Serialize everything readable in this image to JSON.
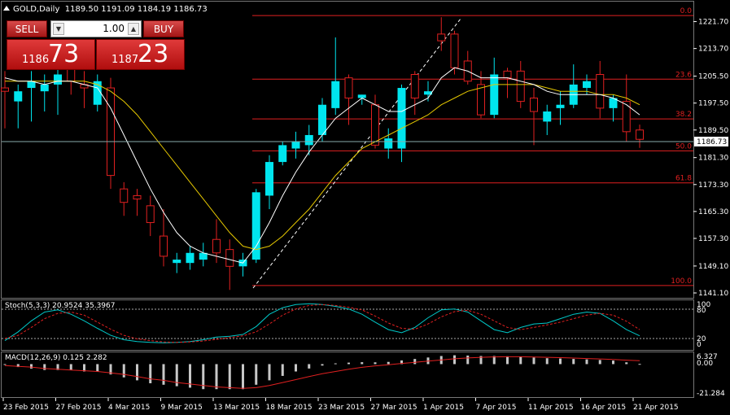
{
  "header": {
    "symbol": "GOLD,Daily",
    "ohlc": "1189.50 1191.09 1184.19 1186.73"
  },
  "trade_panel": {
    "sell_label": "SELL",
    "buy_label": "BUY",
    "lot_value": "1.00",
    "sell_small": "1186",
    "sell_big": "73",
    "buy_small": "1187",
    "buy_big": "23"
  },
  "colors": {
    "bull": "#00e5ee",
    "bear": "#e02020",
    "fib": "#e02020",
    "ma_fast": "#ffffff",
    "ma_slow": "#e6c800",
    "stoch_main": "#00c8c8",
    "stoch_signal": "#e02020",
    "macd_hist": "#c8c8c8",
    "macd_signal": "#e02020"
  },
  "indicators": {
    "stoch_label": "Stoch(5,3,3) 20.9524 35.3967",
    "macd_label": "MACD(12,26,9) 0.125 2.282",
    "stoch_levels": [
      "100",
      "80",
      "20",
      "0"
    ],
    "macd_levels": [
      "6.327",
      "0.00",
      "-21.284"
    ]
  },
  "price_axis": {
    "ticks": [
      "1221.70",
      "1213.70",
      "1205.50",
      "1197.50",
      "1189.50",
      "1181.30",
      "1173.30",
      "1165.30",
      "1157.30",
      "1149.10",
      "1141.10"
    ],
    "current": "1186.73"
  },
  "fib_levels": [
    "0.0",
    "23.6",
    "38.2",
    "50.0",
    "61.8",
    "100.0"
  ],
  "time_axis": [
    "23 Feb 2015",
    "27 Feb 2015",
    "4 Mar 2015",
    "9 Mar 2015",
    "13 Mar 2015",
    "18 Mar 2015",
    "23 Mar 2015",
    "27 Mar 2015",
    "1 Apr 2015",
    "7 Apr 2015",
    "11 Apr 2015",
    "16 Apr 2015",
    "21 Apr 2015"
  ],
  "chart_data": {
    "type": "candlestick",
    "title": "GOLD,Daily",
    "ylim": [
      1141.1,
      1225.7
    ],
    "candles": [
      {
        "o": 1202,
        "h": 1207,
        "l": 1190,
        "c": 1201
      },
      {
        "o": 1198,
        "h": 1203,
        "l": 1190,
        "c": 1201
      },
      {
        "o": 1202,
        "h": 1207,
        "l": 1192,
        "c": 1204
      },
      {
        "o": 1201,
        "h": 1206,
        "l": 1195,
        "c": 1203
      },
      {
        "o": 1203,
        "h": 1208,
        "l": 1194,
        "c": 1206
      },
      {
        "o": 1209,
        "h": 1213,
        "l": 1200,
        "c": 1204
      },
      {
        "o": 1203,
        "h": 1207,
        "l": 1196,
        "c": 1202
      },
      {
        "o": 1197,
        "h": 1206,
        "l": 1195,
        "c": 1204
      },
      {
        "o": 1202,
        "h": 1205,
        "l": 1172,
        "c": 1176
      },
      {
        "o": 1172,
        "h": 1174,
        "l": 1164,
        "c": 1168
      },
      {
        "o": 1170,
        "h": 1172,
        "l": 1164,
        "c": 1169
      },
      {
        "o": 1167,
        "h": 1170,
        "l": 1158,
        "c": 1162
      },
      {
        "o": 1158,
        "h": 1166,
        "l": 1149,
        "c": 1152
      },
      {
        "o": 1150,
        "h": 1153,
        "l": 1147,
        "c": 1151
      },
      {
        "o": 1150,
        "h": 1155,
        "l": 1148,
        "c": 1153
      },
      {
        "o": 1151,
        "h": 1156,
        "l": 1149,
        "c": 1153
      },
      {
        "o": 1157,
        "h": 1163,
        "l": 1150,
        "c": 1153
      },
      {
        "o": 1154,
        "h": 1157,
        "l": 1142,
        "c": 1149
      },
      {
        "o": 1149,
        "h": 1153,
        "l": 1146,
        "c": 1151
      },
      {
        "o": 1151,
        "h": 1172,
        "l": 1150,
        "c": 1171
      },
      {
        "o": 1170,
        "h": 1182,
        "l": 1166,
        "c": 1180
      },
      {
        "o": 1180,
        "h": 1186,
        "l": 1179,
        "c": 1185
      },
      {
        "o": 1184,
        "h": 1189,
        "l": 1181,
        "c": 1186
      },
      {
        "o": 1185,
        "h": 1191,
        "l": 1182,
        "c": 1188
      },
      {
        "o": 1188,
        "h": 1199,
        "l": 1186,
        "c": 1197
      },
      {
        "o": 1196,
        "h": 1217,
        "l": 1194,
        "c": 1204
      },
      {
        "o": 1205,
        "h": 1206,
        "l": 1191,
        "c": 1199
      },
      {
        "o": 1199,
        "h": 1200,
        "l": 1197,
        "c": 1200
      },
      {
        "o": 1197,
        "h": 1200,
        "l": 1184,
        "c": 1185
      },
      {
        "o": 1184,
        "h": 1190,
        "l": 1181,
        "c": 1187
      },
      {
        "o": 1184,
        "h": 1203,
        "l": 1180,
        "c": 1202
      },
      {
        "o": 1206,
        "h": 1207,
        "l": 1194,
        "c": 1199
      },
      {
        "o": 1200,
        "h": 1204,
        "l": 1198,
        "c": 1201
      },
      {
        "o": 1218,
        "h": 1223,
        "l": 1213,
        "c": 1216
      },
      {
        "o": 1218,
        "h": 1219,
        "l": 1206,
        "c": 1208
      },
      {
        "o": 1210,
        "h": 1213,
        "l": 1203,
        "c": 1204
      },
      {
        "o": 1203,
        "h": 1207,
        "l": 1193,
        "c": 1194
      },
      {
        "o": 1194,
        "h": 1211,
        "l": 1193,
        "c": 1206
      },
      {
        "o": 1207,
        "h": 1208,
        "l": 1199,
        "c": 1205
      },
      {
        "o": 1207,
        "h": 1210,
        "l": 1196,
        "c": 1198
      },
      {
        "o": 1199,
        "h": 1202,
        "l": 1185,
        "c": 1195
      },
      {
        "o": 1192,
        "h": 1197,
        "l": 1188,
        "c": 1195
      },
      {
        "o": 1196,
        "h": 1201,
        "l": 1191,
        "c": 1197
      },
      {
        "o": 1197,
        "h": 1209,
        "l": 1196,
        "c": 1203
      },
      {
        "o": 1202,
        "h": 1206,
        "l": 1200,
        "c": 1204
      },
      {
        "o": 1206,
        "h": 1210,
        "l": 1193,
        "c": 1196
      },
      {
        "o": 1196,
        "h": 1200,
        "l": 1192,
        "c": 1199
      },
      {
        "o": 1198,
        "h": 1206,
        "l": 1186,
        "c": 1189
      },
      {
        "o": 1189.5,
        "h": 1191.09,
        "l": 1184.19,
        "c": 1186.73
      }
    ],
    "ma_fast": [
      1205,
      1204,
      1204,
      1203,
      1204,
      1204,
      1203,
      1202,
      1196,
      1188,
      1180,
      1172,
      1165,
      1159,
      1155,
      1153,
      1152,
      1151,
      1150,
      1155,
      1162,
      1170,
      1177,
      1183,
      1188,
      1193,
      1196,
      1199,
      1197,
      1195,
      1195,
      1197,
      1199,
      1205,
      1208,
      1207,
      1205,
      1205,
      1205,
      1204,
      1203,
      1201,
      1200,
      1200,
      1200,
      1200,
      1199,
      1197,
      1194
    ],
    "ma_slow": [
      1204,
      1204,
      1204,
      1204,
      1204,
      1204,
      1204,
      1203,
      1201,
      1198,
      1194,
      1189,
      1184,
      1179,
      1174,
      1169,
      1164,
      1159,
      1155,
      1154,
      1155,
      1158,
      1162,
      1166,
      1171,
      1176,
      1180,
      1184,
      1186,
      1188,
      1190,
      1192,
      1194,
      1197,
      1199,
      1201,
      1202,
      1203,
      1203,
      1203,
      1203,
      1202,
      1201,
      1201,
      1201,
      1200,
      1200,
      1199,
      1197
    ],
    "stochastic": {
      "label": "Stoch(5,3,3)",
      "main": 20.9524,
      "signal": 35.3967,
      "levels": [
        80,
        20
      ],
      "main_series": [
        10,
        30,
        55,
        75,
        80,
        70,
        55,
        38,
        22,
        12,
        8,
        6,
        5,
        6,
        8,
        12,
        18,
        20,
        24,
        42,
        70,
        85,
        92,
        94,
        92,
        88,
        82,
        70,
        52,
        35,
        28,
        40,
        62,
        80,
        82,
        75,
        55,
        35,
        28,
        40,
        48,
        50,
        60,
        70,
        75,
        72,
        55,
        35,
        21
      ],
      "signal_series": [
        15,
        22,
        40,
        60,
        72,
        75,
        68,
        52,
        36,
        22,
        14,
        10,
        7,
        6,
        7,
        9,
        13,
        17,
        21,
        30,
        48,
        68,
        82,
        90,
        92,
        90,
        86,
        80,
        66,
        50,
        38,
        36,
        48,
        64,
        76,
        79,
        70,
        55,
        40,
        35,
        40,
        46,
        52,
        60,
        68,
        72,
        68,
        54,
        35
      ]
    },
    "macd": {
      "label": "MACD(12,26,9)",
      "main": 0.125,
      "signal": 2.282,
      "ylim": [
        -21.284,
        6.327
      ],
      "hist": [
        0,
        -2,
        -3,
        -4,
        -4,
        -4,
        -5,
        -5,
        -7,
        -9,
        -11,
        -13,
        -14,
        -15,
        -16,
        -17,
        -17,
        -17,
        -17,
        -14,
        -11,
        -8,
        -5,
        -3,
        -1,
        0.5,
        1,
        1.3,
        1.2,
        1.5,
        2.5,
        3.5,
        4.5,
        5.5,
        6,
        5.8,
        5.5,
        5.5,
        5.3,
        5,
        4.5,
        4,
        3.8,
        3.5,
        3.2,
        2.8,
        2.4,
        1.2,
        0.125
      ],
      "signal_series": [
        -1,
        -1.5,
        -2,
        -3,
        -3.5,
        -4,
        -4.5,
        -5,
        -6,
        -7,
        -8.5,
        -10,
        -11,
        -12.5,
        -13.5,
        -14.5,
        -15.5,
        -16,
        -16.5,
        -16,
        -14.5,
        -12.5,
        -10.5,
        -8.5,
        -6.5,
        -5,
        -3.5,
        -2.2,
        -1.2,
        -0.4,
        0.5,
        1.2,
        2,
        2.8,
        3.6,
        4.2,
        4.6,
        4.9,
        5,
        5,
        4.8,
        4.6,
        4.4,
        4.1,
        3.8,
        3.5,
        3.1,
        2.7,
        2.282
      ]
    },
    "fibonacci": [
      {
        "level": "0.0",
        "price": 1223.5
      },
      {
        "level": "23.6",
        "price": 1204.6
      },
      {
        "level": "38.2",
        "price": 1192.8
      },
      {
        "level": "50.0",
        "price": 1183.3
      },
      {
        "level": "61.8",
        "price": 1173.8
      },
      {
        "level": "100.0",
        "price": 1143.3
      }
    ],
    "current_price": 1186.73
  }
}
